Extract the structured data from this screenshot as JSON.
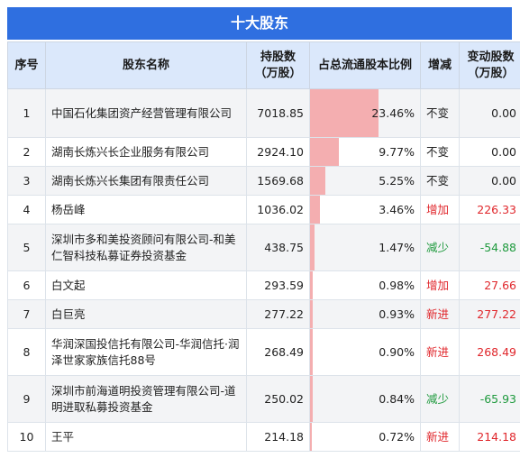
{
  "title": "十大股东",
  "headers": {
    "idx": "序号",
    "name": "股东名称",
    "shares": "持股数\n（万股）",
    "ratio": "占总流通股本比例",
    "change": "增减",
    "chg_shares": "变动股数\n（万股）"
  },
  "colors": {
    "header_bg": "#2f6fe0",
    "bar": "#f4aeb0",
    "increase": "#e0262b",
    "decrease": "#1f9a3e"
  },
  "rows": [
    {
      "idx": "1",
      "name": "中国石化集团资产经营管理有限公司",
      "shares": "7018.85",
      "ratio": "23.46%",
      "ratio_value": 23.46,
      "change": "不变",
      "change_type": "flat",
      "chg_shares": "0.00"
    },
    {
      "idx": "2",
      "name": "湖南长炼兴长企业服务有限公司",
      "shares": "2924.10",
      "ratio": "9.77%",
      "ratio_value": 9.77,
      "change": "不变",
      "change_type": "flat",
      "chg_shares": "0.00"
    },
    {
      "idx": "3",
      "name": "湖南长炼兴长集团有限责任公司",
      "shares": "1569.68",
      "ratio": "5.25%",
      "ratio_value": 5.25,
      "change": "不变",
      "change_type": "flat",
      "chg_shares": "0.00"
    },
    {
      "idx": "4",
      "name": "杨岳峰",
      "shares": "1036.02",
      "ratio": "3.46%",
      "ratio_value": 3.46,
      "change": "增加",
      "change_type": "up",
      "chg_shares": "226.33"
    },
    {
      "idx": "5",
      "name": "深圳市多和美投资顾问有限公司-和美仁智科技私募证券投资基金",
      "shares": "438.75",
      "ratio": "1.47%",
      "ratio_value": 1.47,
      "change": "减少",
      "change_type": "down",
      "chg_shares": "-54.88"
    },
    {
      "idx": "6",
      "name": "白文起",
      "shares": "293.59",
      "ratio": "0.98%",
      "ratio_value": 0.98,
      "change": "增加",
      "change_type": "up",
      "chg_shares": "27.66"
    },
    {
      "idx": "7",
      "name": "白巨亮",
      "shares": "277.22",
      "ratio": "0.93%",
      "ratio_value": 0.93,
      "change": "新进",
      "change_type": "up",
      "chg_shares": "277.22"
    },
    {
      "idx": "8",
      "name": "华润深国投信托有限公司-华润信托·润泽世家家族信托88号",
      "shares": "268.49",
      "ratio": "0.90%",
      "ratio_value": 0.9,
      "change": "新进",
      "change_type": "up",
      "chg_shares": "268.49"
    },
    {
      "idx": "9",
      "name": "深圳市前海道明投资管理有限公司-道明进取私募投资基金",
      "shares": "250.02",
      "ratio": "0.84%",
      "ratio_value": 0.84,
      "change": "减少",
      "change_type": "down",
      "chg_shares": "-65.93"
    },
    {
      "idx": "10",
      "name": "王平",
      "shares": "214.18",
      "ratio": "0.72%",
      "ratio_value": 0.72,
      "change": "新进",
      "change_type": "up",
      "chg_shares": "214.18"
    }
  ]
}
